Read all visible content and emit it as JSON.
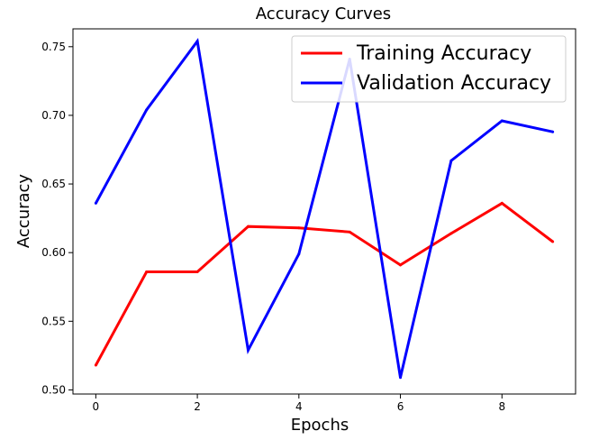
{
  "chart_data": {
    "type": "line",
    "title": "Accuracy Curves",
    "xlabel": "Epochs",
    "ylabel": "Accuracy",
    "x": [
      0,
      1,
      2,
      3,
      4,
      5,
      6,
      7,
      8,
      9
    ],
    "xlim": [
      -0.45,
      9.45
    ],
    "ylim": [
      0.497,
      0.763
    ],
    "xticks": [
      0,
      2,
      4,
      6,
      8
    ],
    "xtick_labels": [
      "0",
      "2",
      "4",
      "6",
      "8"
    ],
    "yticks": [
      0.5,
      0.55,
      0.6,
      0.65,
      0.7,
      0.75
    ],
    "ytick_labels": [
      "0.50",
      "0.55",
      "0.60",
      "0.65",
      "0.70",
      "0.75"
    ],
    "grid": false,
    "legend_position": "top-right",
    "series": [
      {
        "name": "Training Accuracy",
        "color": "#ff0000",
        "values": [
          0.518,
          0.586,
          0.586,
          0.619,
          0.618,
          0.615,
          0.591,
          0.614,
          0.636,
          0.608
        ]
      },
      {
        "name": "Validation Accuracy",
        "color": "#0000ff",
        "values": [
          0.636,
          0.704,
          0.754,
          0.529,
          0.599,
          0.741,
          0.509,
          0.667,
          0.696,
          0.688
        ]
      }
    ]
  }
}
